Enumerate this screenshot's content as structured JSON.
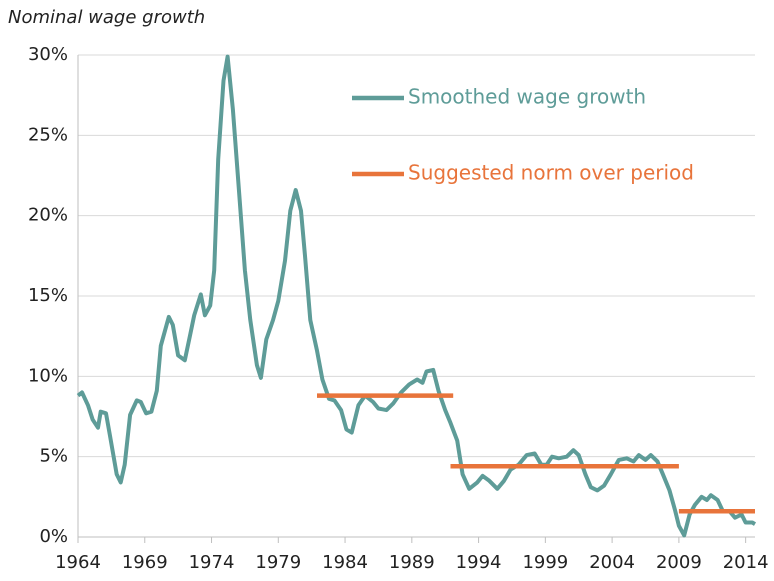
{
  "chart_data": {
    "type": "line",
    "title": "Nominal wage growth",
    "xlim": [
      1964,
      2015
    ],
    "xticks": [
      1964,
      1969,
      1974,
      1979,
      1984,
      1989,
      1994,
      1999,
      2004,
      2009,
      2014
    ],
    "ylim": [
      0,
      30
    ],
    "yticks": [
      {
        "value": 0,
        "label": "0%"
      },
      {
        "value": 5,
        "label": "5%"
      },
      {
        "value": 10,
        "label": "10%"
      },
      {
        "value": 15,
        "label": "15%"
      },
      {
        "value": 20,
        "label": "20%"
      },
      {
        "value": 25,
        "label": "25%"
      },
      {
        "value": 30,
        "label": "30%"
      }
    ],
    "grid": true,
    "legend": "upper right",
    "series": [
      {
        "name": "Smoothed wage growth",
        "color": "#5e9c98",
        "x": [
          1964.0,
          1964.3,
          1964.75,
          1965.1,
          1965.5,
          1965.7,
          1966.1,
          1966.4,
          1966.9,
          1967.2,
          1967.5,
          1967.9,
          1968.4,
          1968.7,
          1969.1,
          1969.5,
          1969.9,
          1970.2,
          1970.8,
          1971.1,
          1971.5,
          1972.0,
          1972.4,
          1972.7,
          1973.2,
          1973.5,
          1973.9,
          1974.2,
          1974.5,
          1974.9,
          1975.2,
          1975.6,
          1976.0,
          1976.5,
          1976.9,
          1977.4,
          1977.7,
          1978.1,
          1978.6,
          1979.0,
          1979.5,
          1979.9,
          1980.3,
          1980.7,
          1981.0,
          1981.4,
          1981.9,
          1982.3,
          1982.8,
          1983.2,
          1983.7,
          1984.1,
          1984.5,
          1985.0,
          1985.5,
          1986.1,
          1986.5,
          1987.1,
          1987.6,
          1988.2,
          1988.8,
          1989.4,
          1989.8,
          1990.1,
          1990.6,
          1991.0,
          1991.5,
          1991.9,
          1992.4,
          1992.8,
          1993.3,
          1993.9,
          1994.3,
          1994.8,
          1995.4,
          1995.9,
          1996.4,
          1997.0,
          1997.6,
          1998.2,
          1998.7,
          1999.1,
          1999.5,
          2000.0,
          2000.6,
          2001.1,
          2001.5,
          2002.0,
          2002.4,
          2002.9,
          2003.4,
          2003.9,
          2004.5,
          2005.1,
          2005.6,
          2006.0,
          2006.5,
          2006.9,
          2007.4,
          2007.8,
          2008.3,
          2008.7,
          2009.0,
          2009.4,
          2009.8,
          2010.2,
          2010.7,
          2011.1,
          2011.4,
          2011.9,
          2012.3,
          2012.8,
          2013.2,
          2013.7,
          2014.0,
          2014.5,
          2014.7
        ],
        "values": [
          8.8,
          9.0,
          8.2,
          7.3,
          6.8,
          7.8,
          7.7,
          6.3,
          3.9,
          3.4,
          4.5,
          7.6,
          8.5,
          8.4,
          7.7,
          7.8,
          9.1,
          11.9,
          13.7,
          13.2,
          11.3,
          11.0,
          12.6,
          13.8,
          15.1,
          13.8,
          14.4,
          16.6,
          23.5,
          28.4,
          29.9,
          26.6,
          22.2,
          16.6,
          13.5,
          10.7,
          9.9,
          12.3,
          13.5,
          14.7,
          17.2,
          20.3,
          21.6,
          20.3,
          17.5,
          13.5,
          11.6,
          9.8,
          8.6,
          8.5,
          7.9,
          6.7,
          6.5,
          8.2,
          8.8,
          8.4,
          8.0,
          7.9,
          8.3,
          9.0,
          9.5,
          9.8,
          9.6,
          10.3,
          10.4,
          9.1,
          7.9,
          7.1,
          6.0,
          3.9,
          3.0,
          3.4,
          3.8,
          3.5,
          3.0,
          3.5,
          4.2,
          4.5,
          5.1,
          5.2,
          4.5,
          4.5,
          5.0,
          4.9,
          5.0,
          5.4,
          5.1,
          3.9,
          3.1,
          2.9,
          3.2,
          3.9,
          4.8,
          4.9,
          4.7,
          5.1,
          4.8,
          5.1,
          4.7,
          3.9,
          2.9,
          1.7,
          0.7,
          0.1,
          1.4,
          2.0,
          2.5,
          2.3,
          2.6,
          2.3,
          1.6,
          1.6,
          1.2,
          1.4,
          0.9,
          0.9,
          0.8
        ]
      },
      {
        "name": "Suggested norm over period",
        "color": "#e8743b",
        "x": [
          1981.9,
          1992.1,
          1992.0,
          1991.9,
          2009.0,
          2009.0,
          2009.0,
          2014.7
        ],
        "values": [
          8.8,
          8.8,
          null,
          4.4,
          4.4,
          null,
          1.6,
          1.6
        ]
      }
    ]
  }
}
